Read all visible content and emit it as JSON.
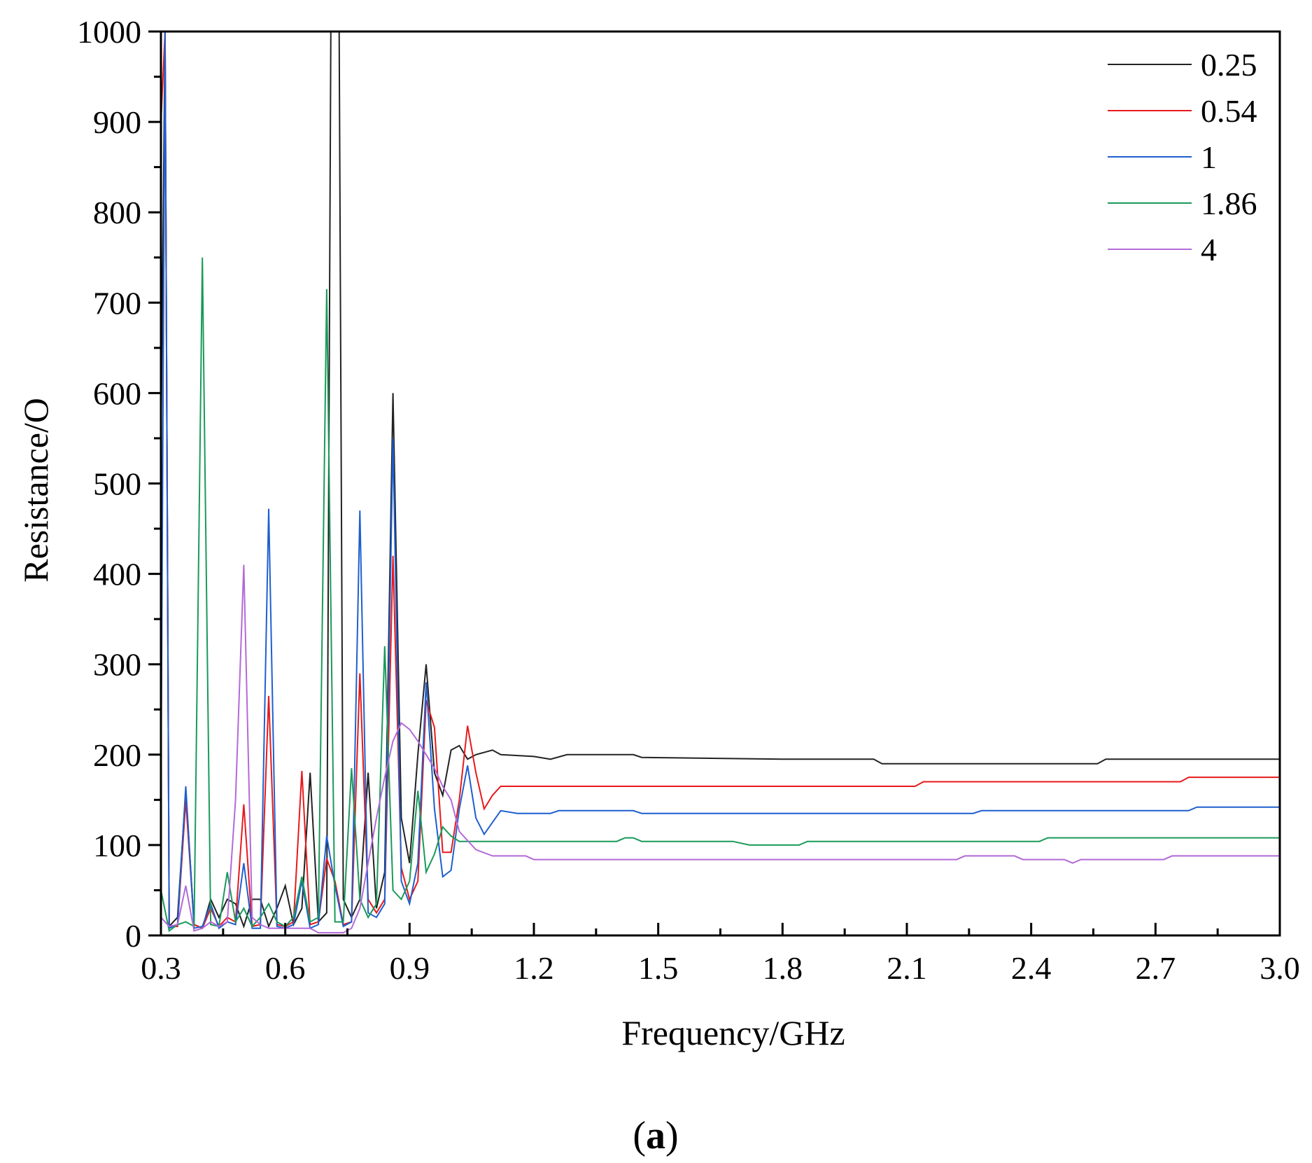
{
  "chart_data": {
    "type": "line",
    "xlabel": "Frequency/GHz",
    "ylabel": "Resistance/O",
    "xlim": [
      0.3,
      3.0
    ],
    "ylim": [
      0,
      1000
    ],
    "xticks": [
      "0.3",
      "0.6",
      "0.9",
      "1.2",
      "1.5",
      "1.8",
      "2.1",
      "2.4",
      "2.7",
      "3.0"
    ],
    "yticks": [
      "0",
      "100",
      "200",
      "300",
      "400",
      "500",
      "600",
      "700",
      "800",
      "900",
      "1000"
    ],
    "legend_position": "top-right",
    "grid": false,
    "series": [
      {
        "name": "0.25",
        "color": "#222222",
        "points": [
          [
            0.3,
            540
          ],
          [
            0.31,
            1000
          ],
          [
            0.32,
            10
          ],
          [
            0.34,
            20
          ],
          [
            0.36,
            160
          ],
          [
            0.38,
            12
          ],
          [
            0.4,
            8
          ],
          [
            0.42,
            40
          ],
          [
            0.44,
            20
          ],
          [
            0.46,
            40
          ],
          [
            0.48,
            35
          ],
          [
            0.5,
            10
          ],
          [
            0.52,
            40
          ],
          [
            0.54,
            40
          ],
          [
            0.56,
            10
          ],
          [
            0.58,
            30
          ],
          [
            0.6,
            55
          ],
          [
            0.62,
            12
          ],
          [
            0.64,
            30
          ],
          [
            0.66,
            180
          ],
          [
            0.68,
            15
          ],
          [
            0.7,
            25
          ],
          [
            0.71,
            1000
          ],
          [
            0.73,
            1000
          ],
          [
            0.74,
            40
          ],
          [
            0.76,
            20
          ],
          [
            0.78,
            40
          ],
          [
            0.8,
            180
          ],
          [
            0.82,
            30
          ],
          [
            0.84,
            70
          ],
          [
            0.86,
            600
          ],
          [
            0.88,
            130
          ],
          [
            0.9,
            80
          ],
          [
            0.92,
            200
          ],
          [
            0.94,
            300
          ],
          [
            0.96,
            180
          ],
          [
            0.98,
            155
          ],
          [
            1.0,
            205
          ],
          [
            1.02,
            210
          ],
          [
            1.04,
            195
          ],
          [
            1.06,
            200
          ],
          [
            1.1,
            205
          ],
          [
            1.12,
            200
          ],
          [
            1.2,
            198
          ],
          [
            1.24,
            195
          ],
          [
            1.28,
            200
          ],
          [
            1.35,
            200
          ],
          [
            1.44,
            200
          ],
          [
            1.46,
            197
          ],
          [
            1.8,
            195
          ],
          [
            2.02,
            195
          ],
          [
            2.04,
            190
          ],
          [
            2.56,
            190
          ],
          [
            2.58,
            195
          ],
          [
            3.0,
            195
          ]
        ]
      },
      {
        "name": "0.54",
        "color": "#e8191b",
        "points": [
          [
            0.3,
            900
          ],
          [
            0.31,
            1000
          ],
          [
            0.32,
            10
          ],
          [
            0.34,
            10
          ],
          [
            0.36,
            150
          ],
          [
            0.38,
            12
          ],
          [
            0.4,
            8
          ],
          [
            0.42,
            30
          ],
          [
            0.44,
            10
          ],
          [
            0.46,
            20
          ],
          [
            0.48,
            15
          ],
          [
            0.5,
            145
          ],
          [
            0.52,
            10
          ],
          [
            0.54,
            12
          ],
          [
            0.56,
            265
          ],
          [
            0.58,
            12
          ],
          [
            0.6,
            10
          ],
          [
            0.62,
            15
          ],
          [
            0.64,
            182
          ],
          [
            0.66,
            12
          ],
          [
            0.68,
            15
          ],
          [
            0.7,
            85
          ],
          [
            0.72,
            60
          ],
          [
            0.74,
            12
          ],
          [
            0.76,
            15
          ],
          [
            0.78,
            290
          ],
          [
            0.8,
            40
          ],
          [
            0.82,
            25
          ],
          [
            0.84,
            40
          ],
          [
            0.86,
            420
          ],
          [
            0.88,
            75
          ],
          [
            0.9,
            40
          ],
          [
            0.92,
            60
          ],
          [
            0.94,
            260
          ],
          [
            0.96,
            230
          ],
          [
            0.98,
            92
          ],
          [
            1.0,
            92
          ],
          [
            1.02,
            150
          ],
          [
            1.04,
            232
          ],
          [
            1.06,
            180
          ],
          [
            1.08,
            140
          ],
          [
            1.1,
            155
          ],
          [
            1.12,
            165
          ],
          [
            1.14,
            165
          ],
          [
            2.12,
            165
          ],
          [
            2.14,
            170
          ],
          [
            2.76,
            170
          ],
          [
            2.78,
            175
          ],
          [
            3.0,
            175
          ]
        ]
      },
      {
        "name": "1",
        "color": "#1f5fcf",
        "points": [
          [
            0.3,
            160
          ],
          [
            0.31,
            1000
          ],
          [
            0.32,
            8
          ],
          [
            0.34,
            12
          ],
          [
            0.36,
            165
          ],
          [
            0.38,
            8
          ],
          [
            0.4,
            10
          ],
          [
            0.42,
            35
          ],
          [
            0.44,
            8
          ],
          [
            0.46,
            15
          ],
          [
            0.48,
            12
          ],
          [
            0.5,
            80
          ],
          [
            0.52,
            8
          ],
          [
            0.54,
            8
          ],
          [
            0.56,
            472
          ],
          [
            0.58,
            10
          ],
          [
            0.6,
            8
          ],
          [
            0.62,
            12
          ],
          [
            0.64,
            60
          ],
          [
            0.66,
            8
          ],
          [
            0.68,
            12
          ],
          [
            0.7,
            110
          ],
          [
            0.72,
            55
          ],
          [
            0.74,
            10
          ],
          [
            0.76,
            15
          ],
          [
            0.78,
            470
          ],
          [
            0.8,
            25
          ],
          [
            0.82,
            20
          ],
          [
            0.84,
            35
          ],
          [
            0.86,
            550
          ],
          [
            0.88,
            60
          ],
          [
            0.9,
            35
          ],
          [
            0.92,
            80
          ],
          [
            0.94,
            280
          ],
          [
            0.96,
            140
          ],
          [
            0.98,
            65
          ],
          [
            1.0,
            72
          ],
          [
            1.02,
            140
          ],
          [
            1.04,
            188
          ],
          [
            1.06,
            130
          ],
          [
            1.08,
            112
          ],
          [
            1.1,
            125
          ],
          [
            1.12,
            138
          ],
          [
            1.16,
            135
          ],
          [
            1.24,
            135
          ],
          [
            1.26,
            138
          ],
          [
            1.44,
            138
          ],
          [
            1.46,
            135
          ],
          [
            2.26,
            135
          ],
          [
            2.28,
            138
          ],
          [
            2.78,
            138
          ],
          [
            2.8,
            142
          ],
          [
            3.0,
            142
          ]
        ]
      },
      {
        "name": "1.86",
        "color": "#1a9a5a",
        "points": [
          [
            0.3,
            50
          ],
          [
            0.32,
            5
          ],
          [
            0.34,
            12
          ],
          [
            0.36,
            15
          ],
          [
            0.38,
            10
          ],
          [
            0.4,
            750
          ],
          [
            0.42,
            12
          ],
          [
            0.44,
            10
          ],
          [
            0.46,
            70
          ],
          [
            0.48,
            15
          ],
          [
            0.5,
            30
          ],
          [
            0.52,
            10
          ],
          [
            0.54,
            20
          ],
          [
            0.56,
            35
          ],
          [
            0.58,
            15
          ],
          [
            0.6,
            10
          ],
          [
            0.62,
            20
          ],
          [
            0.64,
            65
          ],
          [
            0.66,
            15
          ],
          [
            0.68,
            20
          ],
          [
            0.7,
            715
          ],
          [
            0.72,
            15
          ],
          [
            0.74,
            15
          ],
          [
            0.76,
            185
          ],
          [
            0.78,
            40
          ],
          [
            0.8,
            20
          ],
          [
            0.82,
            35
          ],
          [
            0.84,
            320
          ],
          [
            0.86,
            50
          ],
          [
            0.88,
            40
          ],
          [
            0.9,
            60
          ],
          [
            0.92,
            160
          ],
          [
            0.94,
            70
          ],
          [
            0.96,
            90
          ],
          [
            0.98,
            120
          ],
          [
            1.0,
            110
          ],
          [
            1.02,
            104
          ],
          [
            1.4,
            104
          ],
          [
            1.42,
            108
          ],
          [
            1.44,
            108
          ],
          [
            1.46,
            104
          ],
          [
            1.68,
            104
          ],
          [
            1.72,
            100
          ],
          [
            1.84,
            100
          ],
          [
            1.86,
            104
          ],
          [
            2.42,
            104
          ],
          [
            2.44,
            108
          ],
          [
            3.0,
            108
          ]
        ]
      },
      {
        "name": "4",
        "color": "#b26ad8",
        "points": [
          [
            0.3,
            20
          ],
          [
            0.32,
            10
          ],
          [
            0.34,
            12
          ],
          [
            0.36,
            55
          ],
          [
            0.38,
            5
          ],
          [
            0.4,
            8
          ],
          [
            0.42,
            15
          ],
          [
            0.44,
            10
          ],
          [
            0.46,
            15
          ],
          [
            0.48,
            150
          ],
          [
            0.5,
            410
          ],
          [
            0.52,
            20
          ],
          [
            0.54,
            12
          ],
          [
            0.56,
            8
          ],
          [
            0.6,
            8
          ],
          [
            0.66,
            8
          ],
          [
            0.68,
            3
          ],
          [
            0.74,
            3
          ],
          [
            0.76,
            8
          ],
          [
            0.78,
            30
          ],
          [
            0.8,
            80
          ],
          [
            0.82,
            130
          ],
          [
            0.84,
            175
          ],
          [
            0.86,
            215
          ],
          [
            0.88,
            235
          ],
          [
            0.9,
            228
          ],
          [
            0.92,
            215
          ],
          [
            0.94,
            200
          ],
          [
            0.96,
            185
          ],
          [
            0.98,
            165
          ],
          [
            1.0,
            150
          ],
          [
            1.02,
            115
          ],
          [
            1.04,
            105
          ],
          [
            1.06,
            95
          ],
          [
            1.1,
            88
          ],
          [
            1.18,
            88
          ],
          [
            1.2,
            84
          ],
          [
            2.22,
            84
          ],
          [
            2.24,
            88
          ],
          [
            2.36,
            88
          ],
          [
            2.38,
            84
          ],
          [
            2.48,
            84
          ],
          [
            2.5,
            80
          ],
          [
            2.52,
            84
          ],
          [
            2.72,
            84
          ],
          [
            2.74,
            88
          ],
          [
            3.0,
            88
          ]
        ]
      }
    ],
    "panel_label": "(a)"
  }
}
